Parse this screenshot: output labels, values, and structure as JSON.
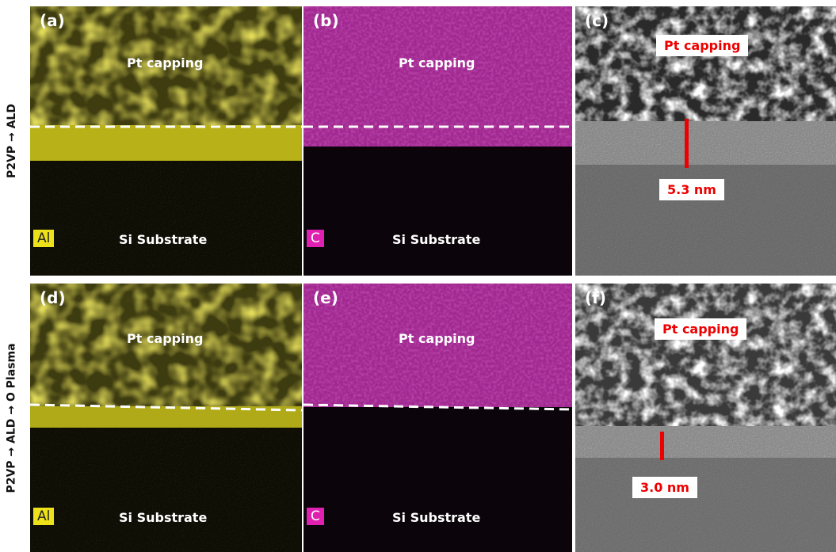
{
  "row_labels": [
    "P2VP → ALD",
    "P2VP → ALD → O Plasma"
  ],
  "panels": [
    {
      "label": "(a)",
      "top_text": "Pt capping",
      "bottom_text": "Si Substrate",
      "element": "Al"
    },
    {
      "label": "(b)",
      "top_text": "Pt capping",
      "bottom_text": "Si Substrate",
      "element": "C"
    },
    {
      "label": "(c)",
      "top_text": "Pt capping",
      "thickness": "5.3 nm"
    },
    {
      "label": "(d)",
      "top_text": "Pt capping",
      "bottom_text": "Si Substrate",
      "element": "Al"
    },
    {
      "label": "(e)",
      "top_text": "Pt capping",
      "bottom_text": "Si Substrate",
      "element": "C"
    },
    {
      "label": "(f)",
      "top_text": "Pt capping",
      "thickness": "3.0 nm"
    }
  ]
}
